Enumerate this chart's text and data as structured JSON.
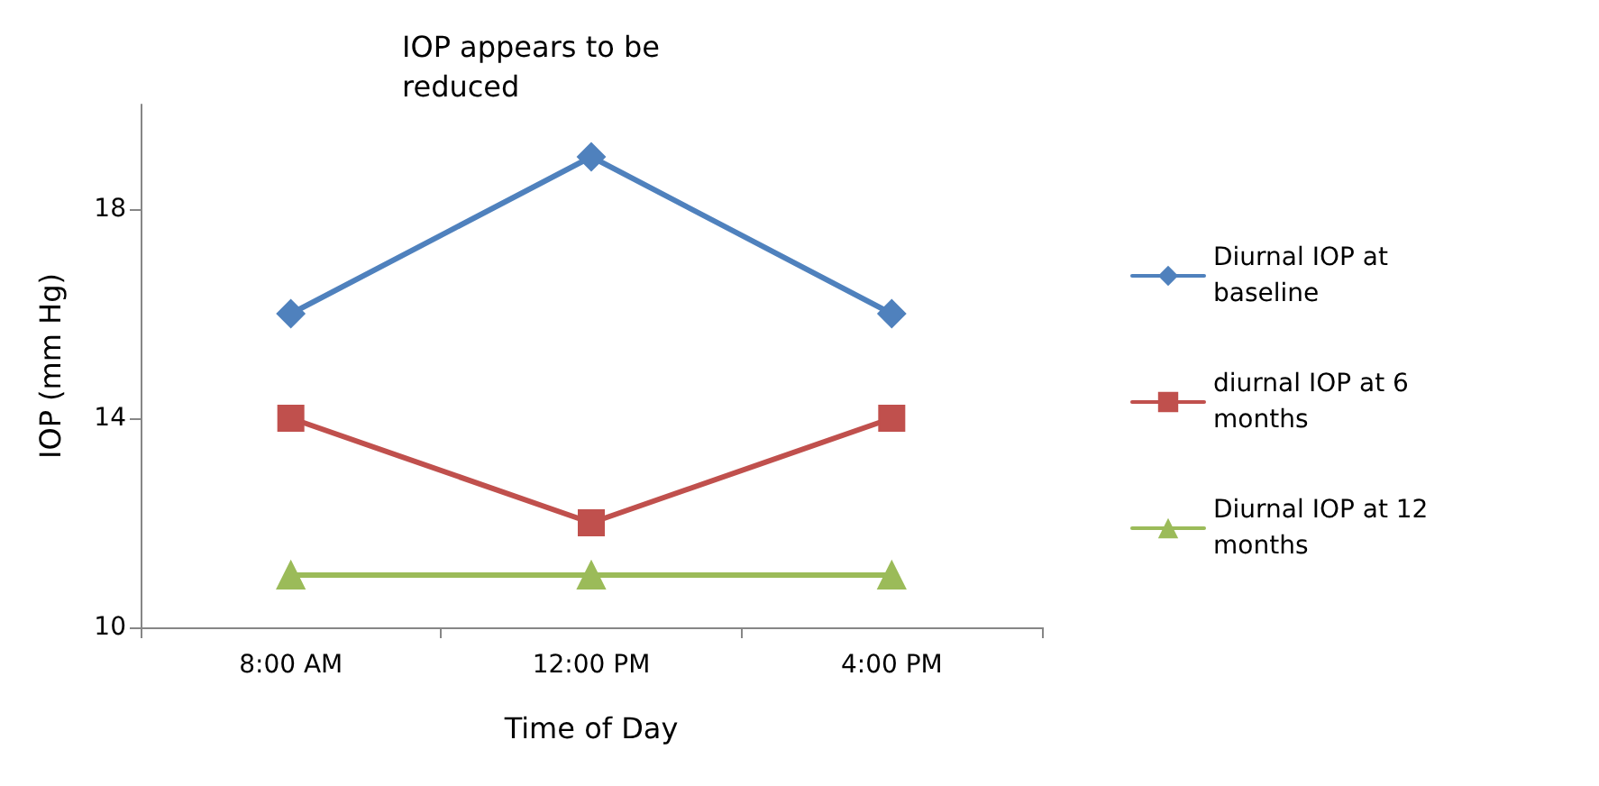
{
  "chart_data": {
    "type": "line",
    "title": "IOP appears to be reduced",
    "xlabel": "Time of Day",
    "ylabel": "IOP (mm Hg)",
    "categories": [
      "8:00 AM",
      "12:00 PM",
      "4:00 PM"
    ],
    "series": [
      {
        "name": "Diurnal IOP at baseline",
        "color": "#4f81bd",
        "marker": "diamond",
        "values": [
          16,
          19,
          16
        ]
      },
      {
        "name": "diurnal IOP at 6 months",
        "color": "#c0504d",
        "marker": "square",
        "values": [
          14,
          12,
          14
        ]
      },
      {
        "name": "Diurnal IOP at 12 months",
        "color": "#9bbb59",
        "marker": "triangle",
        "values": [
          11,
          11,
          11
        ]
      }
    ],
    "ylim": [
      10,
      20
    ],
    "yticks": [
      10,
      14,
      18
    ],
    "grid": false,
    "legend": "right",
    "line_style": "solid"
  }
}
